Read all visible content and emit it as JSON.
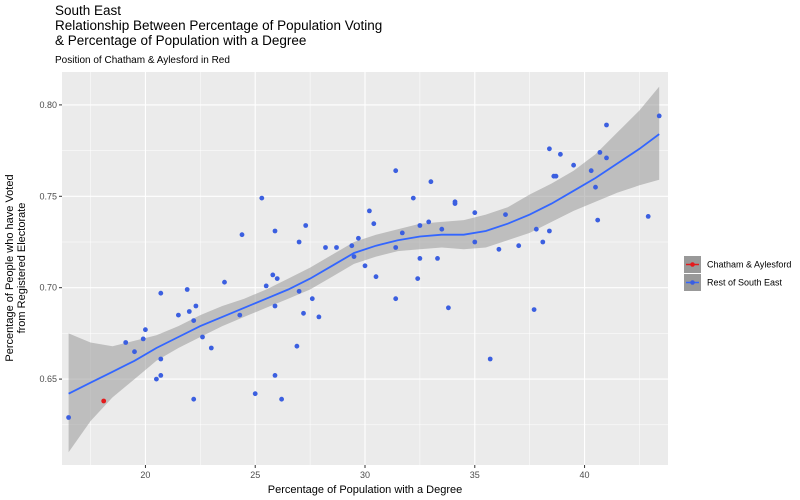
{
  "chart_data": {
    "type": "scatter",
    "title_lines": [
      "South East",
      "Relationship Between Percentage of Population Voting",
      "& Percentage of Population with a Degree"
    ],
    "subtitle": "Position of Chatham & Aylesford in Red",
    "xlabel": "Percentage of Population with a Degree",
    "ylabel_lines": [
      "Percentage of People who have Voted",
      "from Registered Electorate"
    ],
    "xlim": [
      16.2,
      43.8
    ],
    "ylim": [
      0.603,
      0.818
    ],
    "x_ticks": [
      20,
      25,
      30,
      35,
      40
    ],
    "x_tick_labels": [
      "20",
      "25",
      "30",
      "35",
      "40"
    ],
    "y_ticks": [
      0.65,
      0.7,
      0.75,
      0.8
    ],
    "y_tick_labels": [
      "0.65",
      "0.70",
      "0.75",
      "0.80"
    ],
    "grid": true,
    "legend_placement": "right",
    "colors": {
      "panel": "#ebebeb",
      "grid": "#ffffff",
      "rest": "#3b5fe0",
      "highlight": "#e41a1c",
      "smooth": "#3366ff",
      "ribbon": "#999999"
    },
    "series": [
      {
        "name": "Chatham & Aylesford",
        "color": "#e41a1c",
        "points": [
          [
            18.1,
            0.638
          ]
        ]
      },
      {
        "name": "Rest of South East",
        "color": "#3b5fe0",
        "points": [
          [
            16.5,
            0.629
          ],
          [
            19.1,
            0.67
          ],
          [
            19.5,
            0.665
          ],
          [
            19.9,
            0.672
          ],
          [
            20.0,
            0.677
          ],
          [
            20.5,
            0.65
          ],
          [
            20.7,
            0.697
          ],
          [
            20.7,
            0.661
          ],
          [
            20.7,
            0.652
          ],
          [
            21.5,
            0.685
          ],
          [
            21.9,
            0.699
          ],
          [
            22.0,
            0.687
          ],
          [
            22.2,
            0.682
          ],
          [
            22.2,
            0.639
          ],
          [
            22.3,
            0.69
          ],
          [
            22.6,
            0.673
          ],
          [
            23.0,
            0.667
          ],
          [
            23.6,
            0.703
          ],
          [
            24.3,
            0.685
          ],
          [
            24.4,
            0.729
          ],
          [
            25.0,
            0.642
          ],
          [
            25.3,
            0.749
          ],
          [
            25.5,
            0.701
          ],
          [
            25.8,
            0.707
          ],
          [
            25.9,
            0.731
          ],
          [
            25.9,
            0.69
          ],
          [
            25.9,
            0.652
          ],
          [
            26.0,
            0.705
          ],
          [
            26.2,
            0.639
          ],
          [
            26.9,
            0.668
          ],
          [
            27.0,
            0.725
          ],
          [
            27.0,
            0.698
          ],
          [
            27.2,
            0.686
          ],
          [
            27.3,
            0.734
          ],
          [
            27.6,
            0.694
          ],
          [
            27.9,
            0.684
          ],
          [
            28.2,
            0.722
          ],
          [
            28.7,
            0.722
          ],
          [
            29.4,
            0.723
          ],
          [
            29.5,
            0.717
          ],
          [
            29.7,
            0.727
          ],
          [
            30.0,
            0.712
          ],
          [
            30.2,
            0.742
          ],
          [
            30.4,
            0.735
          ],
          [
            30.5,
            0.706
          ],
          [
            31.4,
            0.764
          ],
          [
            31.4,
            0.722
          ],
          [
            31.4,
            0.694
          ],
          [
            31.7,
            0.73
          ],
          [
            32.2,
            0.749
          ],
          [
            32.4,
            0.705
          ],
          [
            32.5,
            0.734
          ],
          [
            32.5,
            0.716
          ],
          [
            32.9,
            0.736
          ],
          [
            33.0,
            0.758
          ],
          [
            33.3,
            0.716
          ],
          [
            33.5,
            0.732
          ],
          [
            33.8,
            0.689
          ],
          [
            34.1,
            0.747
          ],
          [
            34.1,
            0.746
          ],
          [
            35.0,
            0.741
          ],
          [
            35.0,
            0.725
          ],
          [
            35.7,
            0.661
          ],
          [
            36.1,
            0.721
          ],
          [
            36.4,
            0.74
          ],
          [
            37.0,
            0.723
          ],
          [
            37.7,
            0.688
          ],
          [
            37.8,
            0.732
          ],
          [
            38.1,
            0.725
          ],
          [
            38.4,
            0.776
          ],
          [
            38.4,
            0.731
          ],
          [
            38.6,
            0.761
          ],
          [
            38.7,
            0.761
          ],
          [
            38.9,
            0.773
          ],
          [
            39.5,
            0.767
          ],
          [
            40.3,
            0.764
          ],
          [
            40.5,
            0.755
          ],
          [
            40.6,
            0.737
          ],
          [
            40.7,
            0.774
          ],
          [
            41.0,
            0.789
          ],
          [
            41.0,
            0.771
          ],
          [
            42.9,
            0.739
          ],
          [
            43.4,
            0.794
          ]
        ]
      }
    ],
    "smooth": {
      "x": [
        16.5,
        17.5,
        18.5,
        19.5,
        20.5,
        21.5,
        22.5,
        23.5,
        24.5,
        25.5,
        26.5,
        27.5,
        28.5,
        29.5,
        30.5,
        31.5,
        32.5,
        33.5,
        34.5,
        35.5,
        36.5,
        37.5,
        38.5,
        39.5,
        40.5,
        41.5,
        42.5,
        43.4
      ],
      "fit": [
        0.642,
        0.648,
        0.654,
        0.66,
        0.667,
        0.673,
        0.679,
        0.684,
        0.689,
        0.694,
        0.699,
        0.705,
        0.712,
        0.719,
        0.723,
        0.726,
        0.728,
        0.729,
        0.729,
        0.731,
        0.735,
        0.74,
        0.746,
        0.753,
        0.76,
        0.768,
        0.776,
        0.784
      ],
      "lower": [
        0.61,
        0.627,
        0.64,
        0.65,
        0.66,
        0.667,
        0.673,
        0.679,
        0.684,
        0.689,
        0.694,
        0.699,
        0.706,
        0.713,
        0.717,
        0.72,
        0.721,
        0.722,
        0.721,
        0.722,
        0.726,
        0.73,
        0.736,
        0.742,
        0.747,
        0.752,
        0.756,
        0.759
      ],
      "upper": [
        0.675,
        0.67,
        0.668,
        0.671,
        0.674,
        0.679,
        0.685,
        0.69,
        0.694,
        0.699,
        0.705,
        0.711,
        0.718,
        0.725,
        0.729,
        0.732,
        0.735,
        0.736,
        0.737,
        0.74,
        0.744,
        0.751,
        0.757,
        0.764,
        0.773,
        0.785,
        0.797,
        0.81
      ]
    }
  }
}
